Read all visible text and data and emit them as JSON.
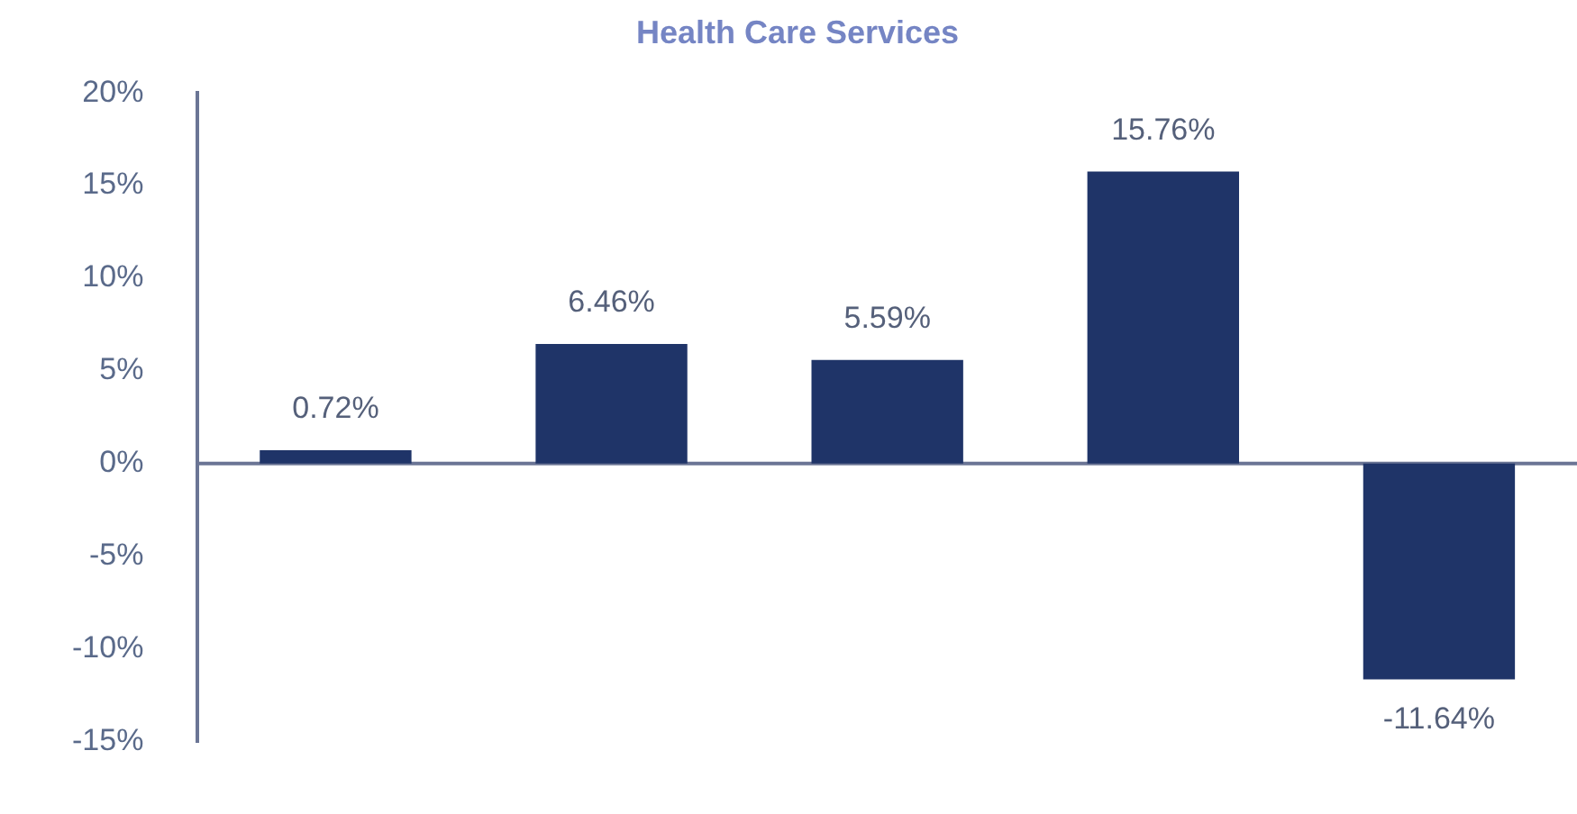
{
  "chart_data": {
    "type": "bar",
    "title": "Health Care Services",
    "categories": [
      null,
      null,
      null,
      null,
      null
    ],
    "values": [
      0.72,
      6.46,
      5.59,
      15.76,
      -11.64
    ],
    "value_labels": [
      "0.72%",
      "6.46%",
      "5.59%",
      "15.76%",
      "-11.64%"
    ],
    "color": "#1f3468",
    "ylim": [
      -15,
      20
    ],
    "yticks": [
      {
        "value": -15,
        "label": "-15%"
      },
      {
        "value": -10,
        "label": "-10%"
      },
      {
        "value": -5,
        "label": "-5%"
      },
      {
        "value": 0,
        "label": "0%"
      },
      {
        "value": 5,
        "label": "5%"
      },
      {
        "value": 10,
        "label": "10%"
      },
      {
        "value": 15,
        "label": "15%"
      },
      {
        "value": 20,
        "label": "20%"
      }
    ],
    "ref_lines": [
      {
        "axis": "y",
        "value": 0,
        "color": "#6b7595"
      }
    ],
    "grid": false,
    "legend": false
  }
}
